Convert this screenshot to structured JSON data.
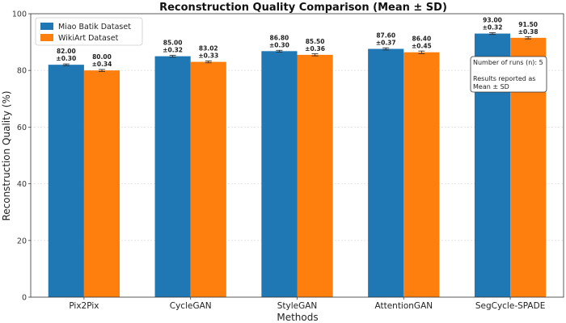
{
  "chart_data": {
    "type": "bar",
    "title": "Reconstruction Quality Comparison (Mean ± SD)",
    "xlabel": "Methods",
    "ylabel": "Reconstruction Quality (%)",
    "ylim": [
      0,
      100
    ],
    "yticks": [
      0,
      20,
      40,
      60,
      80,
      100
    ],
    "grid": true,
    "legend_position": "top-left",
    "categories": [
      "Pix2Pix",
      "CycleGAN",
      "StyleGAN",
      "AttentionGAN",
      "SegCycle-SPADE"
    ],
    "series": [
      {
        "name": "Miao Batik Dataset",
        "color": "#1f77b4",
        "values": [
          82.0,
          85.0,
          86.8,
          87.6,
          93.0
        ],
        "errors": [
          0.3,
          0.32,
          0.3,
          0.37,
          0.32
        ],
        "value_labels": [
          "82.00",
          "85.00",
          "86.80",
          "87.60",
          "93.00"
        ],
        "error_labels": [
          "±0.30",
          "±0.32",
          "±0.30",
          "±0.37",
          "±0.32"
        ]
      },
      {
        "name": "WikiArt Dataset",
        "color": "#ff7f0e",
        "values": [
          80.0,
          83.02,
          85.5,
          86.4,
          91.5
        ],
        "errors": [
          0.34,
          0.33,
          0.36,
          0.45,
          0.38
        ],
        "value_labels": [
          "80.00",
          "83.02",
          "85.50",
          "86.40",
          "91.50"
        ],
        "error_labels": [
          "±0.34",
          "±0.33",
          "±0.36",
          "±0.45",
          "±0.38"
        ]
      }
    ],
    "annotation": {
      "position": "top-right",
      "lines": [
        "Number of runs (n): 5",
        "",
        "Results reported as",
        "Mean ± SD"
      ]
    }
  }
}
